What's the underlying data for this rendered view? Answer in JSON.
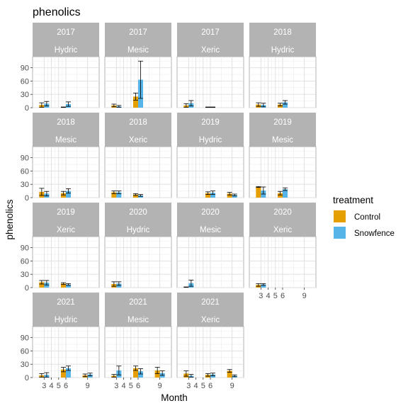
{
  "chart_data": {
    "type": "bar",
    "title": "phenolics",
    "xlabel": "Month",
    "ylabel": "phenolics",
    "x_ticks": [
      3,
      4,
      5,
      6,
      9
    ],
    "y_ticks": [
      0,
      30,
      60,
      90
    ],
    "ylim": [
      0,
      115
    ],
    "grid": true,
    "legend": {
      "title": "treatment",
      "position": "right",
      "items": [
        {
          "name": "Control",
          "color": "#E69F00"
        },
        {
          "name": "Snowfence",
          "color": "#56B4E9"
        }
      ]
    },
    "panels": [
      {
        "year": "2017",
        "site": "Hydric",
        "bars": [
          {
            "month": 3,
            "treatment": "Control",
            "value": 6,
            "err": 5
          },
          {
            "month": 3,
            "treatment": "Snowfence",
            "value": 9,
            "err": 5
          },
          {
            "month": 6,
            "treatment": "Control",
            "value": 1,
            "err": 0.5
          },
          {
            "month": 6,
            "treatment": "Snowfence",
            "value": 8,
            "err": 5
          }
        ]
      },
      {
        "year": "2017",
        "site": "Mesic",
        "bars": [
          {
            "month": 3,
            "treatment": "Control",
            "value": 5,
            "err": 3
          },
          {
            "month": 3,
            "treatment": "Snowfence",
            "value": 3,
            "err": 2
          },
          {
            "month": 6,
            "treatment": "Control",
            "value": 25,
            "err": 8
          },
          {
            "month": 6,
            "treatment": "Snowfence",
            "value": 63,
            "err": 42
          }
        ]
      },
      {
        "year": "2017",
        "site": "Xeric",
        "bars": [
          {
            "month": 3,
            "treatment": "Control",
            "value": 5,
            "err": 4
          },
          {
            "month": 3,
            "treatment": "Snowfence",
            "value": 10,
            "err": 6
          },
          {
            "month": 6,
            "treatment": "Control",
            "value": 1,
            "err": 0.5
          },
          {
            "month": 6,
            "treatment": "Snowfence",
            "value": 1,
            "err": 0.5
          }
        ]
      },
      {
        "year": "2018",
        "site": "Hydric",
        "bars": [
          {
            "month": 3,
            "treatment": "Control",
            "value": 7,
            "err": 4
          },
          {
            "month": 3,
            "treatment": "Snowfence",
            "value": 6,
            "err": 4
          },
          {
            "month": 6,
            "treatment": "Control",
            "value": 7,
            "err": 3
          },
          {
            "month": 6,
            "treatment": "Snowfence",
            "value": 12,
            "err": 4
          }
        ]
      },
      {
        "year": "2018",
        "site": "Mesic",
        "bars": [
          {
            "month": 3,
            "treatment": "Control",
            "value": 13,
            "err": 8
          },
          {
            "month": 3,
            "treatment": "Snowfence",
            "value": 9,
            "err": 5
          },
          {
            "month": 6,
            "treatment": "Control",
            "value": 10,
            "err": 4
          },
          {
            "month": 6,
            "treatment": "Snowfence",
            "value": 15,
            "err": 5
          }
        ]
      },
      {
        "year": "2018",
        "site": "Xeric",
        "bars": [
          {
            "month": 3,
            "treatment": "Control",
            "value": 12,
            "err": 3
          },
          {
            "month": 3,
            "treatment": "Snowfence",
            "value": 12,
            "err": 3
          },
          {
            "month": 6,
            "treatment": "Control",
            "value": 7,
            "err": 2
          },
          {
            "month": 6,
            "treatment": "Snowfence",
            "value": 5,
            "err": 2
          }
        ]
      },
      {
        "year": "2019",
        "site": "Hydric",
        "bars": [
          {
            "month": 6,
            "treatment": "Control",
            "value": 10,
            "err": 3
          },
          {
            "month": 6,
            "treatment": "Snowfence",
            "value": 11,
            "err": 4
          },
          {
            "month": 9,
            "treatment": "Control",
            "value": 9,
            "err": 3
          },
          {
            "month": 9,
            "treatment": "Snowfence",
            "value": 6,
            "err": 2
          }
        ]
      },
      {
        "year": "2019",
        "site": "Mesic",
        "bars": [
          {
            "month": 3,
            "treatment": "Control",
            "value": 24,
            "err": 1
          },
          {
            "month": 3,
            "treatment": "Snowfence",
            "value": 16,
            "err": 8
          },
          {
            "month": 6,
            "treatment": "Control",
            "value": 10,
            "err": 4
          },
          {
            "month": 6,
            "treatment": "Snowfence",
            "value": 19,
            "err": 3
          }
        ]
      },
      {
        "year": "2019",
        "site": "Xeric",
        "bars": [
          {
            "month": 3,
            "treatment": "Control",
            "value": 12,
            "err": 4
          },
          {
            "month": 3,
            "treatment": "Snowfence",
            "value": 11,
            "err": 5
          },
          {
            "month": 6,
            "treatment": "Control",
            "value": 9,
            "err": 2
          },
          {
            "month": 6,
            "treatment": "Snowfence",
            "value": 7,
            "err": 2
          }
        ]
      },
      {
        "year": "2020",
        "site": "Hydric",
        "bars": [
          {
            "month": 3,
            "treatment": "Control",
            "value": 8,
            "err": 5
          },
          {
            "month": 3,
            "treatment": "Snowfence",
            "value": 9,
            "err": 4
          }
        ]
      },
      {
        "year": "2020",
        "site": "Mesic",
        "bars": [
          {
            "month": 3,
            "treatment": "Control",
            "value": 1,
            "err": 0.5
          },
          {
            "month": 3,
            "treatment": "Snowfence",
            "value": 10,
            "err": 7
          }
        ]
      },
      {
        "year": "2020",
        "site": "Xeric",
        "bars": [
          {
            "month": 3,
            "treatment": "Control",
            "value": 6,
            "err": 3
          },
          {
            "month": 3,
            "treatment": "Snowfence",
            "value": 7,
            "err": 2
          }
        ]
      },
      {
        "year": "2021",
        "site": "Hydric",
        "bars": [
          {
            "month": 3,
            "treatment": "Control",
            "value": 5,
            "err": 4
          },
          {
            "month": 3,
            "treatment": "Snowfence",
            "value": 6,
            "err": 5
          },
          {
            "month": 6,
            "treatment": "Control",
            "value": 18,
            "err": 5
          },
          {
            "month": 6,
            "treatment": "Snowfence",
            "value": 21,
            "err": 5
          },
          {
            "month": 9,
            "treatment": "Control",
            "value": 5,
            "err": 3
          },
          {
            "month": 9,
            "treatment": "Snowfence",
            "value": 7,
            "err": 3
          }
        ]
      },
      {
        "year": "2021",
        "site": "Mesic",
        "bars": [
          {
            "month": 3,
            "treatment": "Control",
            "value": 4,
            "err": 3
          },
          {
            "month": 3,
            "treatment": "Snowfence",
            "value": 16,
            "err": 10
          },
          {
            "month": 6,
            "treatment": "Control",
            "value": 21,
            "err": 5
          },
          {
            "month": 6,
            "treatment": "Snowfence",
            "value": 14,
            "err": 6
          },
          {
            "month": 9,
            "treatment": "Control",
            "value": 16,
            "err": 7
          },
          {
            "month": 9,
            "treatment": "Snowfence",
            "value": 10,
            "err": 5
          }
        ]
      },
      {
        "year": "2021",
        "site": "Xeric",
        "bars": [
          {
            "month": 3,
            "treatment": "Control",
            "value": 9,
            "err": 6
          },
          {
            "month": 3,
            "treatment": "Snowfence",
            "value": 4,
            "err": 3
          },
          {
            "month": 6,
            "treatment": "Control",
            "value": 6,
            "err": 3
          },
          {
            "month": 6,
            "treatment": "Snowfence",
            "value": 7,
            "err": 3
          },
          {
            "month": 9,
            "treatment": "Control",
            "value": 15,
            "err": 3
          },
          {
            "month": 9,
            "treatment": "Snowfence",
            "value": 4,
            "err": 2
          }
        ]
      }
    ]
  }
}
